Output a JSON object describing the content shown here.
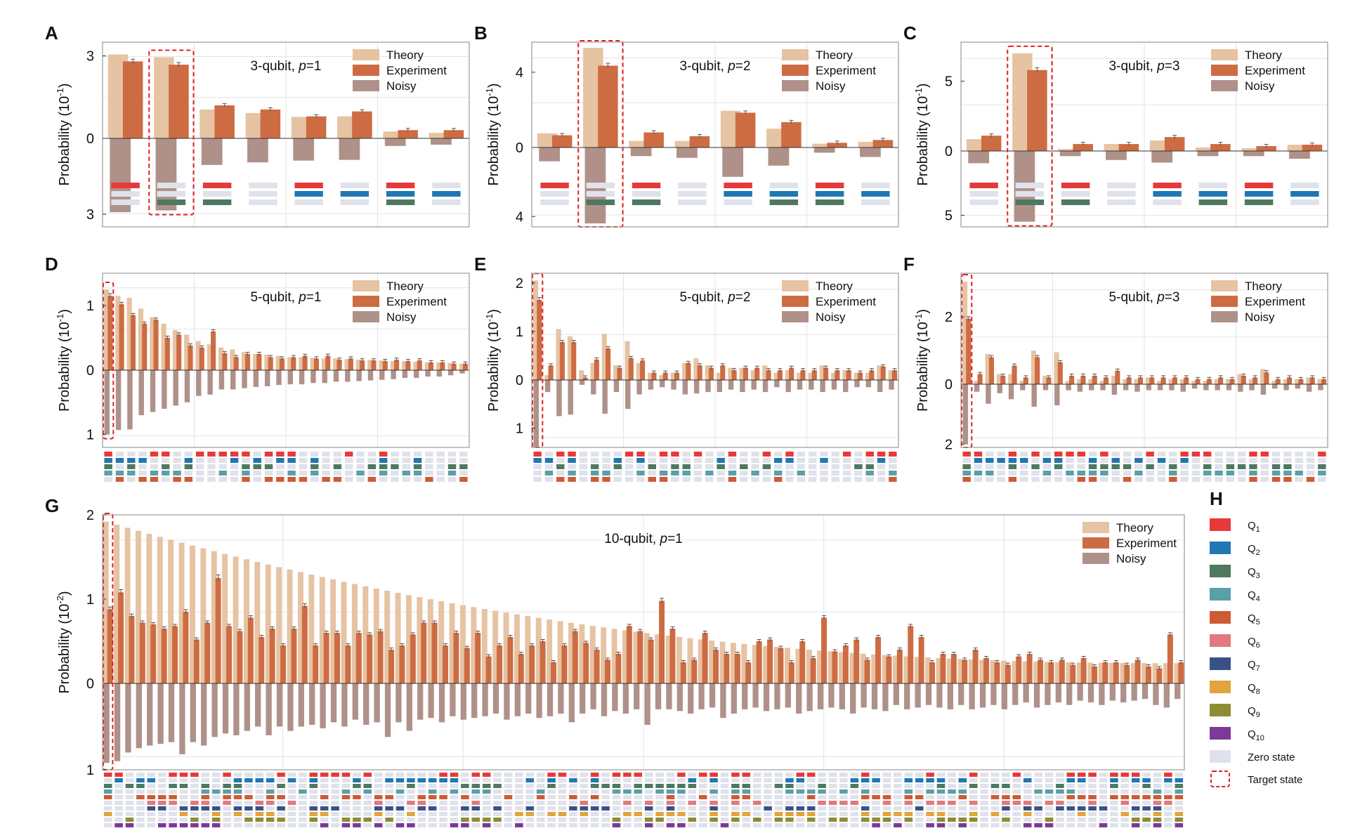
{
  "colors": {
    "theory": "#e6c3a2",
    "experiment": "#cd6c43",
    "noisy": "#af918a",
    "frame": "#9a9a9a",
    "grid": "#e4e4e4",
    "target": "#e02020",
    "zero_state": "#dfe2ea",
    "q_colors": [
      "#e8393a",
      "#1f77b4",
      "#4e7860",
      "#5b9fa8",
      "#cd5b35",
      "#e07a80",
      "#3a5188",
      "#e2a43c",
      "#8e8c34",
      "#7b3a98"
    ]
  },
  "chart_data": [
    {
      "panel": "A",
      "type": "bar",
      "title": "3-qubit, p=1",
      "ylabel": "Probability (10",
      "ylabel_exp": "-1",
      "ylabel_tail": ")",
      "ylim_top": [
        0,
        3.5
      ],
      "ylim_bottom": [
        0,
        3.5
      ],
      "top_ticks": [
        "0",
        "3"
      ],
      "bottom_ticks": [
        "3"
      ],
      "legend": [
        "Theory",
        "Experiment",
        "Noisy"
      ],
      "target_index": 1,
      "nq": 3,
      "theory": [
        3.05,
        2.95,
        1.05,
        0.92,
        0.78,
        0.8,
        0.25,
        0.2
      ],
      "experiment": [
        2.8,
        2.68,
        1.2,
        1.05,
        0.8,
        0.98,
        0.3,
        0.3
      ],
      "noisy": [
        2.92,
        2.85,
        1.05,
        0.95,
        0.88,
        0.85,
        0.3,
        0.25
      ],
      "states": [
        [
          1,
          0,
          0
        ],
        [
          0,
          0,
          1
        ],
        [
          1,
          0,
          1
        ],
        [
          0,
          0,
          0
        ],
        [
          1,
          1,
          0
        ],
        [
          0,
          1,
          0
        ],
        [
          1,
          1,
          1
        ],
        [
          0,
          1,
          0
        ]
      ]
    },
    {
      "panel": "B",
      "type": "bar",
      "title": "3-qubit, p=2",
      "ylabel": "Probability (10",
      "ylabel_exp": "-1",
      "ylabel_tail": ")",
      "ylim_top": [
        0,
        5.6
      ],
      "ylim_bottom": [
        0,
        4.6
      ],
      "top_ticks": [
        "0",
        "4"
      ],
      "bottom_ticks": [
        "4"
      ],
      "legend": [
        "Theory",
        "Experiment",
        "Noisy"
      ],
      "target_index": 1,
      "nq": 3,
      "theory": [
        0.75,
        5.3,
        0.35,
        0.35,
        1.95,
        1.0,
        0.2,
        0.3
      ],
      "experiment": [
        0.65,
        4.35,
        0.8,
        0.6,
        1.85,
        1.35,
        0.25,
        0.4
      ],
      "noisy": [
        0.8,
        4.4,
        0.5,
        0.6,
        1.7,
        1.05,
        0.3,
        0.55
      ],
      "states": [
        [
          1,
          0,
          0
        ],
        [
          0,
          0,
          1
        ],
        [
          1,
          0,
          1
        ],
        [
          0,
          0,
          0
        ],
        [
          1,
          1,
          0
        ],
        [
          0,
          1,
          1
        ],
        [
          1,
          1,
          1
        ],
        [
          0,
          1,
          0
        ]
      ]
    },
    {
      "panel": "C",
      "type": "bar",
      "title": "3-qubit, p=3",
      "ylabel": "Probability (10",
      "ylabel_exp": "-1",
      "ylabel_tail": ")",
      "ylim_top": [
        0,
        7.8
      ],
      "ylim_bottom": [
        0,
        5.9
      ],
      "top_ticks": [
        "0",
        "5"
      ],
      "bottom_ticks": [
        "5"
      ],
      "legend": [
        "Theory",
        "Experiment",
        "Noisy"
      ],
      "target_index": 1,
      "nq": 3,
      "theory": [
        0.85,
        7.0,
        0.15,
        0.5,
        0.75,
        0.25,
        0.2,
        0.45
      ],
      "experiment": [
        1.1,
        5.8,
        0.5,
        0.5,
        1.0,
        0.5,
        0.35,
        0.45
      ],
      "noisy": [
        0.95,
        5.5,
        0.4,
        0.7,
        0.9,
        0.4,
        0.4,
        0.6
      ],
      "states": [
        [
          1,
          0,
          0
        ],
        [
          0,
          0,
          1
        ],
        [
          1,
          0,
          1
        ],
        [
          0,
          0,
          0
        ],
        [
          1,
          1,
          0
        ],
        [
          0,
          1,
          1
        ],
        [
          1,
          1,
          1
        ],
        [
          0,
          1,
          0
        ]
      ]
    },
    {
      "panel": "D",
      "type": "bar",
      "title": "5-qubit, p=1",
      "ylabel": "Probability (10",
      "ylabel_exp": "-1",
      "ylabel_tail": ")",
      "ylim_top": [
        0,
        1.5
      ],
      "ylim_bottom": [
        0,
        1.2
      ],
      "top_ticks": [
        "0",
        "1"
      ],
      "bottom_ticks": [
        "1"
      ],
      "legend": [
        "Theory",
        "Experiment",
        "Noisy"
      ],
      "target_index": 0,
      "nq": 5,
      "theory": [
        1.25,
        1.15,
        1.12,
        0.95,
        0.82,
        0.72,
        0.62,
        0.55,
        0.45,
        0.4,
        0.35,
        0.32,
        0.28,
        0.25,
        0.24,
        0.22,
        0.2,
        0.2,
        0.19,
        0.18,
        0.18,
        0.17,
        0.16,
        0.16,
        0.15,
        0.14,
        0.14,
        0.13,
        0.12,
        0.12,
        0.11,
        0.1
      ],
      "experiment": [
        1.15,
        1.02,
        0.85,
        0.72,
        0.78,
        0.5,
        0.55,
        0.38,
        0.35,
        0.6,
        0.26,
        0.2,
        0.25,
        0.25,
        0.2,
        0.18,
        0.2,
        0.22,
        0.18,
        0.22,
        0.16,
        0.18,
        0.15,
        0.15,
        0.14,
        0.16,
        0.14,
        0.15,
        0.12,
        0.12,
        0.1,
        0.1
      ],
      "noisy": [
        1.0,
        0.93,
        0.92,
        0.7,
        0.65,
        0.6,
        0.55,
        0.5,
        0.4,
        0.38,
        0.3,
        0.3,
        0.28,
        0.26,
        0.25,
        0.23,
        0.22,
        0.22,
        0.2,
        0.2,
        0.18,
        0.18,
        0.17,
        0.16,
        0.15,
        0.14,
        0.12,
        0.12,
        0.1,
        0.1,
        0.08,
        0.05
      ],
      "states_seed": 11
    },
    {
      "panel": "E",
      "type": "bar",
      "title": "5-qubit, p=2",
      "ylabel": "Probability (10",
      "ylabel_exp": "-1",
      "ylabel_tail": ")",
      "ylim_top": [
        0,
        2.2
      ],
      "ylim_bottom": [
        0,
        1.4
      ],
      "top_ticks": [
        "0",
        "1",
        "2"
      ],
      "bottom_ticks": [
        "1"
      ],
      "legend": [
        "Theory",
        "Experiment",
        "Noisy"
      ],
      "target_index": 0,
      "nq": 5,
      "theory": [
        2.05,
        0.1,
        1.05,
        0.9,
        0.2,
        0.35,
        0.95,
        0.3,
        0.8,
        0.35,
        0.15,
        0.1,
        0.15,
        0.35,
        0.45,
        0.3,
        0.15,
        0.25,
        0.25,
        0.2,
        0.3,
        0.15,
        0.2,
        0.15,
        0.15,
        0.3,
        0.15,
        0.2,
        0.15,
        0.15,
        0.3,
        0.2
      ],
      "experiment": [
        1.65,
        0.3,
        0.78,
        0.78,
        0.05,
        0.42,
        0.65,
        0.25,
        0.45,
        0.4,
        0.15,
        0.15,
        0.15,
        0.35,
        0.3,
        0.25,
        0.3,
        0.2,
        0.25,
        0.25,
        0.2,
        0.2,
        0.25,
        0.2,
        0.2,
        0.25,
        0.2,
        0.2,
        0.15,
        0.2,
        0.28,
        0.2
      ],
      "noisy": [
        1.4,
        0.25,
        0.75,
        0.72,
        0.1,
        0.3,
        0.7,
        0.25,
        0.6,
        0.3,
        0.2,
        0.15,
        0.2,
        0.3,
        0.28,
        0.25,
        0.25,
        0.2,
        0.25,
        0.2,
        0.25,
        0.15,
        0.25,
        0.2,
        0.2,
        0.25,
        0.2,
        0.25,
        0.15,
        0.15,
        0.25,
        0.2
      ],
      "states_seed": 23
    },
    {
      "panel": "F",
      "type": "bar",
      "title": "5-qubit, p=3",
      "ylabel": "Probability (10",
      "ylabel_exp": "-1",
      "ylabel_tail": ")",
      "ylim_top": [
        0,
        3.3
      ],
      "ylim_bottom": [
        0,
        2.1
      ],
      "top_ticks": [
        "0",
        "2"
      ],
      "bottom_ticks": [
        "2"
      ],
      "legend": [
        "Theory",
        "Experiment",
        "Noisy"
      ],
      "target_index": 0,
      "nq": 5,
      "theory": [
        3.05,
        0.1,
        0.9,
        0.3,
        0.3,
        0.1,
        1.0,
        0.25,
        0.95,
        0.1,
        0.15,
        0.15,
        0.1,
        0.25,
        0.15,
        0.15,
        0.2,
        0.1,
        0.15,
        0.15,
        0.1,
        0.1,
        0.15,
        0.15,
        0.3,
        0.15,
        0.45,
        0.1,
        0.15,
        0.15,
        0.2,
        0.15
      ],
      "experiment": [
        1.95,
        0.3,
        0.8,
        0.25,
        0.55,
        0.2,
        0.8,
        0.2,
        0.65,
        0.25,
        0.25,
        0.25,
        0.2,
        0.4,
        0.2,
        0.2,
        0.2,
        0.2,
        0.2,
        0.2,
        0.15,
        0.15,
        0.2,
        0.15,
        0.25,
        0.2,
        0.35,
        0.15,
        0.2,
        0.15,
        0.2,
        0.15
      ],
      "noisy": [
        2.0,
        0.25,
        0.65,
        0.3,
        0.5,
        0.2,
        0.75,
        0.2,
        0.7,
        0.2,
        0.25,
        0.2,
        0.2,
        0.35,
        0.2,
        0.25,
        0.2,
        0.2,
        0.2,
        0.25,
        0.15,
        0.2,
        0.2,
        0.2,
        0.25,
        0.2,
        0.35,
        0.15,
        0.2,
        0.15,
        0.25,
        0.2
      ],
      "states_seed": 37
    },
    {
      "panel": "G",
      "type": "bar",
      "title": "10-qubit, p=1",
      "ylabel": "Probability (10",
      "ylabel_exp": "-2",
      "ylabel_tail": ")",
      "ylim_top": [
        0,
        2.0
      ],
      "ylim_bottom": [
        0,
        1.0
      ],
      "top_ticks": [
        "0",
        "1",
        "2"
      ],
      "bottom_ticks": [
        "1"
      ],
      "legend": [
        "Theory",
        "Experiment",
        "Noisy"
      ],
      "target_index": 0,
      "nq": 10,
      "n_bars": 100,
      "theory_range": [
        1.92,
        0.24
      ],
      "experiment_samples": [
        0.88,
        1.08,
        0.8,
        0.72,
        0.7,
        0.65,
        0.68,
        0.85,
        0.52,
        0.72,
        1.25,
        0.68,
        0.62,
        0.78,
        0.55,
        0.65,
        0.45,
        0.65,
        0.92,
        0.45,
        0.6,
        0.6,
        0.45,
        0.6,
        0.58,
        0.62,
        0.4,
        0.45,
        0.58,
        0.72,
        0.72,
        0.45,
        0.6,
        0.42,
        0.6,
        0.32,
        0.45,
        0.55,
        0.35,
        0.45,
        0.5,
        0.25,
        0.45,
        0.62,
        0.48,
        0.4,
        0.28,
        0.35,
        0.68,
        0.62,
        0.52,
        0.98,
        0.65,
        0.25,
        0.28,
        0.6,
        0.4,
        0.35,
        0.35,
        0.25,
        0.5,
        0.52,
        0.42,
        0.25,
        0.5,
        0.3,
        0.78,
        0.38,
        0.45,
        0.52,
        0.28,
        0.55,
        0.32,
        0.4,
        0.68,
        0.55,
        0.25,
        0.35,
        0.35,
        0.28,
        0.4,
        0.3,
        0.25,
        0.22,
        0.32,
        0.35,
        0.28,
        0.25,
        0.28,
        0.22,
        0.3,
        0.2,
        0.25,
        0.25,
        0.22,
        0.28,
        0.2,
        0.18,
        0.58,
        0.25
      ],
      "noisy_samples": [
        0.92,
        0.9,
        0.8,
        0.75,
        0.72,
        0.7,
        0.68,
        0.82,
        0.68,
        0.72,
        0.62,
        0.58,
        0.6,
        0.55,
        0.5,
        0.6,
        0.5,
        0.55,
        0.5,
        0.48,
        0.52,
        0.45,
        0.5,
        0.42,
        0.48,
        0.45,
        0.62,
        0.45,
        0.55,
        0.42,
        0.4,
        0.45,
        0.38,
        0.42,
        0.4,
        0.38,
        0.35,
        0.42,
        0.38,
        0.35,
        0.4,
        0.38,
        0.35,
        0.45,
        0.35,
        0.3,
        0.38,
        0.32,
        0.35,
        0.3,
        0.48,
        0.3,
        0.3,
        0.32,
        0.35,
        0.3,
        0.28,
        0.4,
        0.35,
        0.3,
        0.28,
        0.32,
        0.3,
        0.28,
        0.35,
        0.32,
        0.3,
        0.28,
        0.3,
        0.35,
        0.28,
        0.3,
        0.32,
        0.25,
        0.3,
        0.28,
        0.25,
        0.28,
        0.3,
        0.25,
        0.3,
        0.28,
        0.25,
        0.3,
        0.25,
        0.22,
        0.28,
        0.25,
        0.22,
        0.25,
        0.2,
        0.22,
        0.25,
        0.2,
        0.22,
        0.2,
        0.18,
        0.25,
        0.28,
        0.18
      ],
      "states_seed": 91
    }
  ],
  "legend_h": {
    "panel": "H",
    "qubits": [
      {
        "label": "Q",
        "sub": "1"
      },
      {
        "label": "Q",
        "sub": "2"
      },
      {
        "label": "Q",
        "sub": "3"
      },
      {
        "label": "Q",
        "sub": "4"
      },
      {
        "label": "Q",
        "sub": "5"
      },
      {
        "label": "Q",
        "sub": "6"
      },
      {
        "label": "Q",
        "sub": "7"
      },
      {
        "label": "Q",
        "sub": "8"
      },
      {
        "label": "Q",
        "sub": "9"
      },
      {
        "label": "Q",
        "sub": "10"
      }
    ],
    "zero_state": "Zero state",
    "target_state": "Target state"
  }
}
